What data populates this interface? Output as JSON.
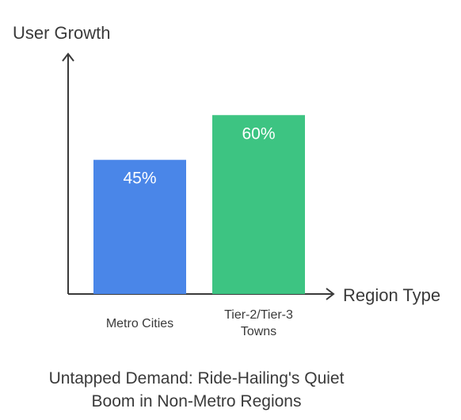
{
  "chart_data": {
    "type": "bar",
    "title": "Untapped Demand: Ride-Hailing's Quiet Boom in Non-Metro Regions",
    "title_lines": [
      "Untapped Demand: Ride-Hailing's Quiet",
      "Boom in Non-Metro Regions"
    ],
    "ylabel": "User Growth",
    "xlabel": "Region Type",
    "categories": [
      "Metro Cities",
      "Tier-2/Tier-3 Towns"
    ],
    "category_lines": [
      [
        "Metro Cities"
      ],
      [
        "Tier-2/Tier-3",
        "Towns"
      ]
    ],
    "values": [
      45,
      60
    ],
    "data_labels": [
      "45%",
      "60%"
    ],
    "colors": [
      "#4A86E8",
      "#3DC482"
    ],
    "ylim": [
      0,
      80
    ],
    "grid": false,
    "legend": "none"
  }
}
